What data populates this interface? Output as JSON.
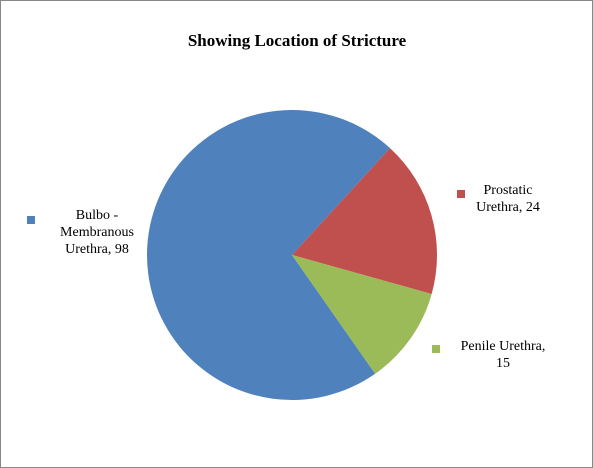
{
  "chart_data": {
    "type": "pie",
    "title": "Showing Location of Stricture",
    "categories": [
      "Bulbo - Membranous Urethra",
      "Prostatic Urethra",
      "Penile Urethra"
    ],
    "values": [
      98,
      24,
      15
    ],
    "colors": [
      "#4f81bd",
      "#c0504d",
      "#9bbb59"
    ]
  }
}
